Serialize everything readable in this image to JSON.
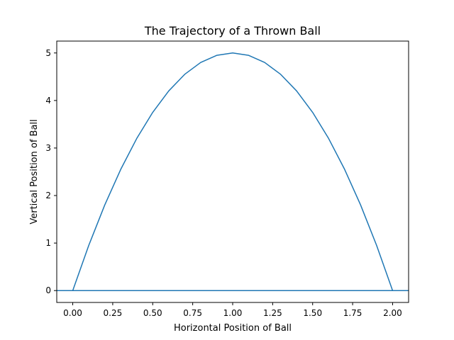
{
  "chart_data": {
    "type": "line",
    "title": "The Trajectory of a Thrown Ball",
    "xlabel": "Horizontal Position of Ball",
    "ylabel": "Vertical Position of Ball",
    "xlim": [
      -0.1,
      2.1
    ],
    "ylim": [
      -0.25,
      5.25
    ],
    "x_ticks": [
      "0.00",
      "0.25",
      "0.50",
      "0.75",
      "1.00",
      "1.25",
      "1.50",
      "1.75",
      "2.00"
    ],
    "y_ticks": [
      "0",
      "1",
      "2",
      "3",
      "4",
      "5"
    ],
    "grid": false,
    "series": [
      {
        "color": "#1f77b4",
        "x": [
          0.0,
          0.1,
          0.2,
          0.3,
          0.4,
          0.5,
          0.6,
          0.7,
          0.8,
          0.9,
          1.0,
          1.1,
          1.2,
          1.3,
          1.4,
          1.5,
          1.6,
          1.7,
          1.8,
          1.9,
          2.0
        ],
        "y": [
          0.0,
          0.95,
          1.8,
          2.55,
          3.2,
          3.75,
          4.2,
          4.55,
          4.8,
          4.95,
          5.0,
          4.95,
          4.8,
          4.55,
          4.2,
          3.75,
          3.2,
          2.55,
          1.8,
          0.95,
          0.0
        ]
      }
    ],
    "reference_lines": [
      {
        "orientation": "horizontal",
        "y": 0,
        "color": "#1f77b4"
      }
    ]
  }
}
